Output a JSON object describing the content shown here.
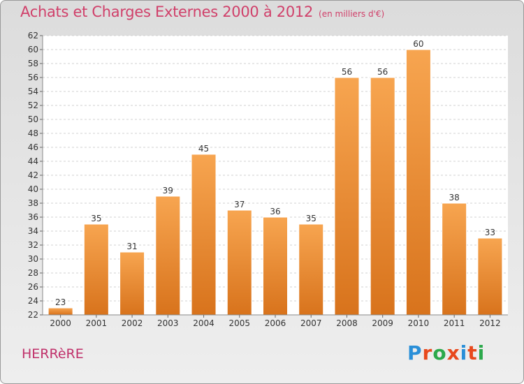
{
  "header": {
    "title": "Achats et Charges Externes 2000 à 2012",
    "subtitle": "(en milliers d'€)"
  },
  "footer": {
    "commune": "HERRèRE",
    "brand": "Proxiti",
    "brand_colors": [
      "#2a8fd8",
      "#e8491d",
      "#2ca94b",
      "#e8491d",
      "#2a8fd8",
      "#e8491d",
      "#2ca94b"
    ]
  },
  "chart_data": {
    "type": "bar",
    "categories": [
      "2000",
      "2001",
      "2002",
      "2003",
      "2004",
      "2005",
      "2006",
      "2007",
      "2008",
      "2009",
      "2010",
      "2011",
      "2012"
    ],
    "values": [
      23,
      35,
      31,
      39,
      45,
      37,
      36,
      35,
      56,
      56,
      60,
      38,
      33
    ],
    "title": "Achats et Charges Externes 2000 à 2012",
    "subtitle": "(en milliers d'€)",
    "ylim": [
      22,
      62
    ],
    "ytick_step": 2,
    "grid": true,
    "bar_color": "#f0a050",
    "bar_color_dark": "#d87a1e"
  }
}
